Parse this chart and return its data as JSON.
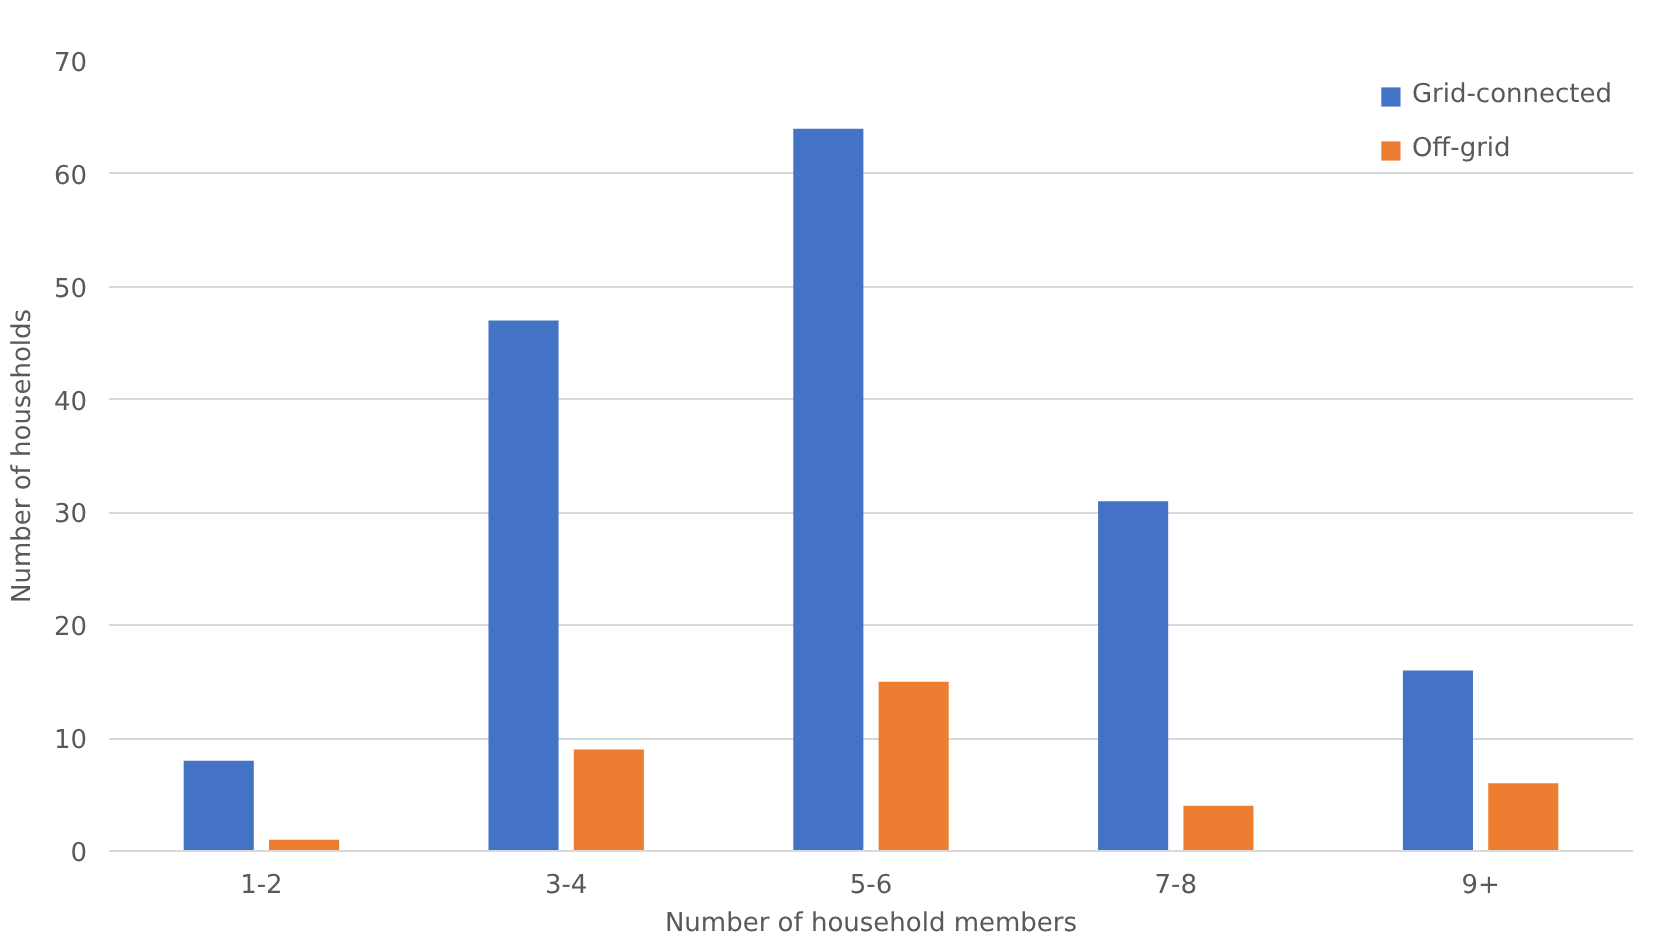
{
  "chart_data": {
    "type": "bar",
    "xlabel": "Number of household members",
    "ylabel": "Number of households",
    "categories": [
      "1-2",
      "3-4",
      "5-6",
      "7-8",
      "9+"
    ],
    "series": [
      {
        "name": "Grid-connected",
        "color": "#4472c4",
        "values": [
          8,
          47,
          64,
          31,
          16
        ]
      },
      {
        "name": "Off-grid",
        "color": "#ed7d31",
        "values": [
          1,
          9,
          15,
          4,
          6
        ]
      }
    ],
    "ylim": [
      0,
      70
    ],
    "yticks": [
      0,
      10,
      20,
      30,
      40,
      50,
      60,
      70
    ],
    "grid": "y",
    "legend": "top right"
  }
}
